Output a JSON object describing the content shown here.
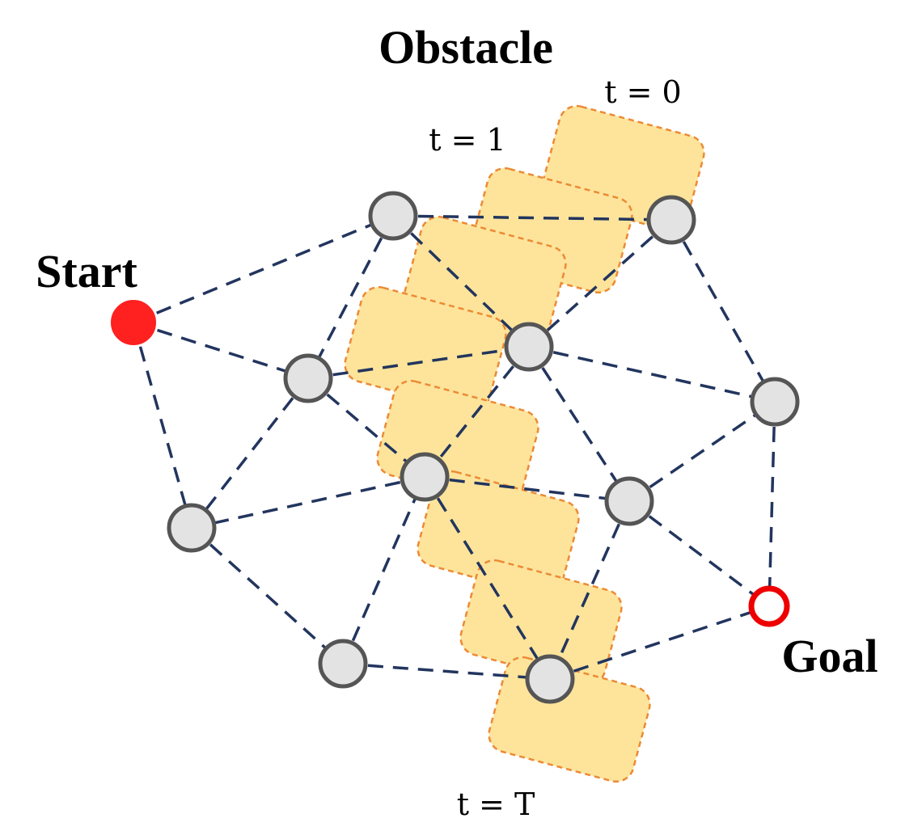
{
  "labels": {
    "obstacle": "Obstacle",
    "start": "Start",
    "goal": "Goal",
    "t_0": "t = 0",
    "t_1": "t = 1",
    "t_T": "t = T"
  },
  "colors": {
    "obstacle_fill": "#fde49a",
    "obstacle_outline": "#ec8a36",
    "edge": "#22355e",
    "node_fill": "#e3e3e3",
    "node_outline": "#555555",
    "start": "#ff2020",
    "goal": "#ee0000"
  },
  "graph": {
    "nodes": [
      "start",
      "n1",
      "n2",
      "n3",
      "n4",
      "n5",
      "n6",
      "n7",
      "n8",
      "n9",
      "n10",
      "n11",
      "goal"
    ],
    "edges": [
      [
        "start",
        "n1"
      ],
      [
        "start",
        "n4"
      ],
      [
        "start",
        "n8"
      ],
      [
        "n1",
        "n2"
      ],
      [
        "n1",
        "n3"
      ],
      [
        "n1",
        "n4"
      ],
      [
        "n2",
        "n3"
      ],
      [
        "n2",
        "n5"
      ],
      [
        "n4",
        "n3"
      ],
      [
        "n4",
        "n6"
      ],
      [
        "n4",
        "n8"
      ],
      [
        "n3",
        "n5"
      ],
      [
        "n3",
        "n6"
      ],
      [
        "n3",
        "n7"
      ],
      [
        "n6",
        "n7"
      ],
      [
        "n6",
        "n8"
      ],
      [
        "n6",
        "n10"
      ],
      [
        "n7",
        "n5"
      ],
      [
        "n7",
        "goal"
      ],
      [
        "n7",
        "n11"
      ],
      [
        "n5",
        "goal"
      ],
      [
        "n8",
        "n9"
      ],
      [
        "n9",
        "n10"
      ],
      [
        "n9",
        "n6"
      ],
      [
        "n10",
        "n11"
      ],
      [
        "n10",
        "goal"
      ]
    ]
  },
  "obstacle_time_steps": 8
}
